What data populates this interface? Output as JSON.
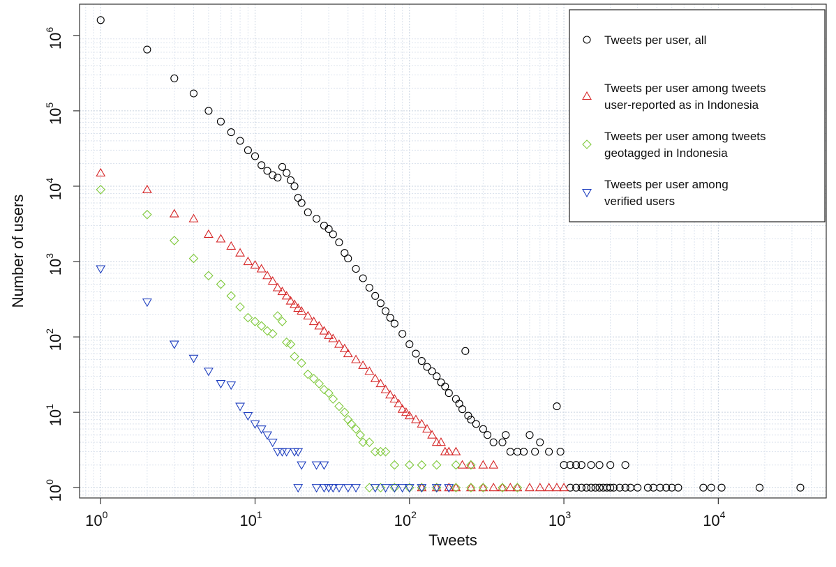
{
  "chart_data": {
    "type": "scatter",
    "title": "",
    "xlabel": "Tweets",
    "ylabel": "Number of users",
    "x_scale": "log",
    "y_scale": "log",
    "xlim": [
      0.73,
      50000
    ],
    "ylim": [
      0.73,
      2600000
    ],
    "x_ticks": [
      {
        "base": "10",
        "exp": "0",
        "value": 1
      },
      {
        "base": "10",
        "exp": "1",
        "value": 10
      },
      {
        "base": "10",
        "exp": "2",
        "value": 100
      },
      {
        "base": "10",
        "exp": "3",
        "value": 1000
      },
      {
        "base": "10",
        "exp": "4",
        "value": 10000
      }
    ],
    "y_ticks": [
      {
        "base": "10",
        "exp": "0",
        "value": 1
      },
      {
        "base": "10",
        "exp": "1",
        "value": 10
      },
      {
        "base": "10",
        "exp": "2",
        "value": 100
      },
      {
        "base": "10",
        "exp": "3",
        "value": 1000
      },
      {
        "base": "10",
        "exp": "4",
        "value": 10000
      },
      {
        "base": "10",
        "exp": "5",
        "value": 100000
      },
      {
        "base": "10",
        "exp": "6",
        "value": 1000000
      }
    ],
    "grid": true,
    "legend_position": "top-right",
    "series": [
      {
        "name_lines": [
          "Tweets per user, all"
        ],
        "marker": "circle",
        "color": "#000000",
        "points": [
          [
            1,
            1600000
          ],
          [
            2,
            650000
          ],
          [
            3,
            270000
          ],
          [
            4,
            170000
          ],
          [
            5,
            100000
          ],
          [
            6,
            72000
          ],
          [
            7,
            52000
          ],
          [
            8,
            40000
          ],
          [
            9,
            30000
          ],
          [
            10,
            25000
          ],
          [
            11,
            19000
          ],
          [
            12,
            16000
          ],
          [
            13,
            14000
          ],
          [
            14,
            13000
          ],
          [
            15,
            18000
          ],
          [
            16,
            15000
          ],
          [
            17,
            12000
          ],
          [
            18,
            10000
          ],
          [
            19,
            7000
          ],
          [
            20,
            6000
          ],
          [
            22,
            4500
          ],
          [
            25,
            3700
          ],
          [
            28,
            3000
          ],
          [
            30,
            2700
          ],
          [
            32,
            2300
          ],
          [
            35,
            1800
          ],
          [
            38,
            1300
          ],
          [
            40,
            1100
          ],
          [
            45,
            800
          ],
          [
            50,
            600
          ],
          [
            55,
            450
          ],
          [
            60,
            350
          ],
          [
            65,
            280
          ],
          [
            70,
            220
          ],
          [
            75,
            180
          ],
          [
            80,
            150
          ],
          [
            90,
            110
          ],
          [
            100,
            80
          ],
          [
            110,
            60
          ],
          [
            120,
            48
          ],
          [
            130,
            40
          ],
          [
            140,
            35
          ],
          [
            150,
            30
          ],
          [
            160,
            25
          ],
          [
            170,
            22
          ],
          [
            180,
            18
          ],
          [
            200,
            15
          ],
          [
            210,
            13
          ],
          [
            220,
            11
          ],
          [
            230,
            65
          ],
          [
            240,
            9
          ],
          [
            250,
            8
          ],
          [
            270,
            7
          ],
          [
            300,
            6
          ],
          [
            320,
            5
          ],
          [
            350,
            4
          ],
          [
            400,
            4
          ],
          [
            420,
            5
          ],
          [
            450,
            3
          ],
          [
            500,
            3
          ],
          [
            550,
            3
          ],
          [
            600,
            5
          ],
          [
            650,
            3
          ],
          [
            700,
            4
          ],
          [
            800,
            3
          ],
          [
            900,
            12
          ],
          [
            950,
            3
          ],
          [
            1000,
            2
          ],
          [
            1100,
            2
          ],
          [
            1200,
            2
          ],
          [
            1300,
            2
          ],
          [
            1500,
            2
          ],
          [
            1700,
            2
          ],
          [
            2000,
            2
          ],
          [
            2500,
            2
          ],
          [
            1100,
            1
          ],
          [
            1200,
            1
          ],
          [
            1300,
            1
          ],
          [
            1400,
            1
          ],
          [
            1500,
            1
          ],
          [
            1600,
            1
          ],
          [
            1700,
            1
          ],
          [
            1800,
            1
          ],
          [
            1900,
            1
          ],
          [
            2000,
            1
          ],
          [
            2100,
            1
          ],
          [
            2300,
            1
          ],
          [
            2500,
            1
          ],
          [
            2700,
            1
          ],
          [
            3000,
            1
          ],
          [
            3500,
            1
          ],
          [
            3800,
            1
          ],
          [
            4200,
            1
          ],
          [
            4600,
            1
          ],
          [
            5000,
            1
          ],
          [
            5500,
            1
          ],
          [
            8000,
            1
          ],
          [
            9000,
            1
          ],
          [
            10500,
            1
          ],
          [
            18500,
            1
          ],
          [
            34000,
            1
          ]
        ]
      },
      {
        "name_lines": [
          "Tweets per user among tweets",
          "user-reported as in Indonesia"
        ],
        "marker": "triangle-up",
        "color": "#d62728",
        "points": [
          [
            1,
            15000
          ],
          [
            2,
            9000
          ],
          [
            3,
            4300
          ],
          [
            4,
            3700
          ],
          [
            5,
            2300
          ],
          [
            6,
            2000
          ],
          [
            7,
            1600
          ],
          [
            8,
            1300
          ],
          [
            9,
            1000
          ],
          [
            10,
            900
          ],
          [
            11,
            800
          ],
          [
            12,
            650
          ],
          [
            13,
            550
          ],
          [
            14,
            450
          ],
          [
            15,
            400
          ],
          [
            16,
            350
          ],
          [
            17,
            300
          ],
          [
            18,
            270
          ],
          [
            19,
            240
          ],
          [
            20,
            220
          ],
          [
            22,
            190
          ],
          [
            24,
            160
          ],
          [
            26,
            140
          ],
          [
            28,
            120
          ],
          [
            30,
            105
          ],
          [
            32,
            95
          ],
          [
            35,
            80
          ],
          [
            38,
            70
          ],
          [
            40,
            60
          ],
          [
            45,
            50
          ],
          [
            50,
            42
          ],
          [
            55,
            35
          ],
          [
            60,
            28
          ],
          [
            65,
            24
          ],
          [
            70,
            20
          ],
          [
            75,
            17
          ],
          [
            80,
            15
          ],
          [
            85,
            13
          ],
          [
            90,
            11
          ],
          [
            95,
            10
          ],
          [
            100,
            9
          ],
          [
            110,
            8
          ],
          [
            120,
            7
          ],
          [
            130,
            6
          ],
          [
            140,
            5
          ],
          [
            150,
            4
          ],
          [
            160,
            4
          ],
          [
            170,
            3
          ],
          [
            180,
            3
          ],
          [
            200,
            3
          ],
          [
            220,
            2
          ],
          [
            250,
            2
          ],
          [
            300,
            2
          ],
          [
            350,
            2
          ],
          [
            120,
            1
          ],
          [
            150,
            1
          ],
          [
            180,
            1
          ],
          [
            200,
            1
          ],
          [
            250,
            1
          ],
          [
            300,
            1
          ],
          [
            350,
            1
          ],
          [
            400,
            1
          ],
          [
            450,
            1
          ],
          [
            500,
            1
          ],
          [
            600,
            1
          ],
          [
            700,
            1
          ],
          [
            800,
            1
          ],
          [
            900,
            1
          ],
          [
            1000,
            1
          ]
        ]
      },
      {
        "name_lines": [
          "Tweets per user among tweets",
          "geotagged in Indonesia"
        ],
        "marker": "diamond",
        "color": "#7fc93b",
        "points": [
          [
            1,
            9000
          ],
          [
            2,
            4200
          ],
          [
            3,
            1900
          ],
          [
            4,
            1100
          ],
          [
            5,
            650
          ],
          [
            6,
            500
          ],
          [
            7,
            350
          ],
          [
            8,
            250
          ],
          [
            9,
            180
          ],
          [
            10,
            160
          ],
          [
            11,
            140
          ],
          [
            12,
            120
          ],
          [
            13,
            110
          ],
          [
            14,
            190
          ],
          [
            15,
            160
          ],
          [
            16,
            85
          ],
          [
            17,
            80
          ],
          [
            18,
            55
          ],
          [
            20,
            45
          ],
          [
            22,
            32
          ],
          [
            24,
            28
          ],
          [
            26,
            24
          ],
          [
            28,
            20
          ],
          [
            30,
            18
          ],
          [
            32,
            15
          ],
          [
            35,
            12
          ],
          [
            38,
            10
          ],
          [
            40,
            8
          ],
          [
            42,
            7
          ],
          [
            45,
            6
          ],
          [
            48,
            5
          ],
          [
            50,
            4
          ],
          [
            55,
            4
          ],
          [
            60,
            3
          ],
          [
            65,
            3
          ],
          [
            70,
            3
          ],
          [
            80,
            2
          ],
          [
            100,
            2
          ],
          [
            120,
            2
          ],
          [
            150,
            2
          ],
          [
            200,
            2
          ],
          [
            250,
            2
          ],
          [
            55,
            1
          ],
          [
            65,
            1
          ],
          [
            80,
            1
          ],
          [
            100,
            1
          ],
          [
            120,
            1
          ],
          [
            150,
            1
          ],
          [
            200,
            1
          ],
          [
            250,
            1
          ],
          [
            300,
            1
          ],
          [
            400,
            1
          ],
          [
            500,
            1
          ]
        ]
      },
      {
        "name_lines": [
          "Tweets per user among",
          "verified users"
        ],
        "marker": "triangle-down",
        "color": "#1f3fbf",
        "points": [
          [
            1,
            800
          ],
          [
            2,
            290
          ],
          [
            3,
            80
          ],
          [
            4,
            52
          ],
          [
            5,
            35
          ],
          [
            6,
            24
          ],
          [
            7,
            23
          ],
          [
            8,
            12
          ],
          [
            9,
            9
          ],
          [
            10,
            7
          ],
          [
            11,
            6
          ],
          [
            12,
            5
          ],
          [
            13,
            4
          ],
          [
            14,
            3
          ],
          [
            15,
            3
          ],
          [
            16,
            3
          ],
          [
            18,
            3
          ],
          [
            19,
            3
          ],
          [
            20,
            2
          ],
          [
            25,
            2
          ],
          [
            28,
            2
          ],
          [
            19,
            1
          ],
          [
            25,
            1
          ],
          [
            28,
            1
          ],
          [
            30,
            1
          ],
          [
            32,
            1
          ],
          [
            35,
            1
          ],
          [
            40,
            1
          ],
          [
            45,
            1
          ],
          [
            60,
            1
          ],
          [
            70,
            1
          ],
          [
            80,
            1
          ],
          [
            90,
            1
          ],
          [
            100,
            1
          ],
          [
            120,
            1
          ],
          [
            150,
            1
          ],
          [
            180,
            1
          ]
        ]
      }
    ]
  }
}
